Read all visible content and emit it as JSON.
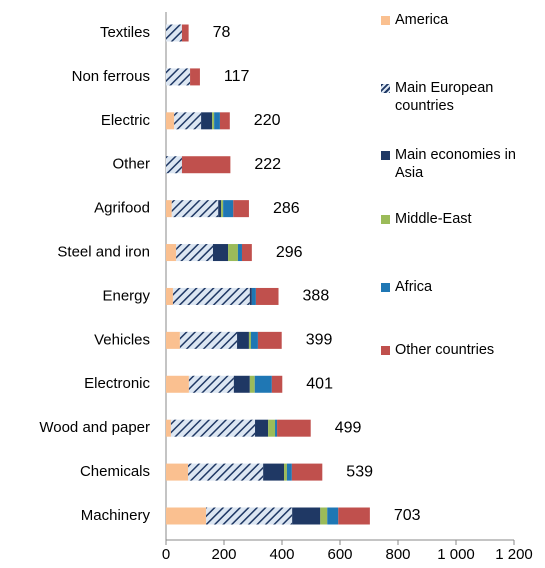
{
  "chart_data": {
    "type": "stacked-barh",
    "categories": [
      "Textiles",
      "Non ferrous",
      "Electric",
      "Other",
      "Agrifood",
      "Steel and iron",
      "Energy",
      "Vehicles",
      "Electronic",
      "Wood and paper",
      "Chemicals",
      "Machinery"
    ],
    "series": [
      {
        "name": "America",
        "color": "#fac090",
        "values": [
          0,
          0,
          28,
          0,
          20,
          35,
          24,
          48,
          79,
          17,
          76,
          138
        ]
      },
      {
        "name": "Main European countries",
        "color": "#dce6f2",
        "pattern": "hatch",
        "values": [
          55,
          83,
          93,
          55,
          160,
          127,
          265,
          197,
          155,
          290,
          259,
          297
        ]
      },
      {
        "name": "Main economies in Asia",
        "color": "#1f3864",
        "values": [
          0,
          0,
          38,
          0,
          10,
          52,
          7,
          41,
          55,
          45,
          72,
          97
        ]
      },
      {
        "name": "Middle-East",
        "color": "#9bbb59",
        "values": [
          0,
          0,
          7,
          0,
          7,
          34,
          0,
          7,
          17,
          24,
          10,
          24
        ]
      },
      {
        "name": "Africa",
        "color": "#1f77b4",
        "values": [
          0,
          0,
          20,
          0,
          35,
          14,
          14,
          24,
          59,
          7,
          17,
          38
        ]
      },
      {
        "name": "Other countries",
        "color": "#c0504d",
        "values": [
          23,
          34,
          34,
          167,
          54,
          34,
          78,
          82,
          36,
          116,
          105,
          109
        ]
      }
    ],
    "totals": [
      78,
      117,
      220,
      222,
      286,
      296,
      388,
      399,
      401,
      499,
      539,
      703
    ],
    "xlim": [
      0,
      1200
    ],
    "xticks": [
      0,
      200,
      400,
      600,
      800,
      {
        "value": 1000,
        "label": "1 000"
      },
      {
        "value": 1200,
        "label": "1 200"
      }
    ]
  }
}
